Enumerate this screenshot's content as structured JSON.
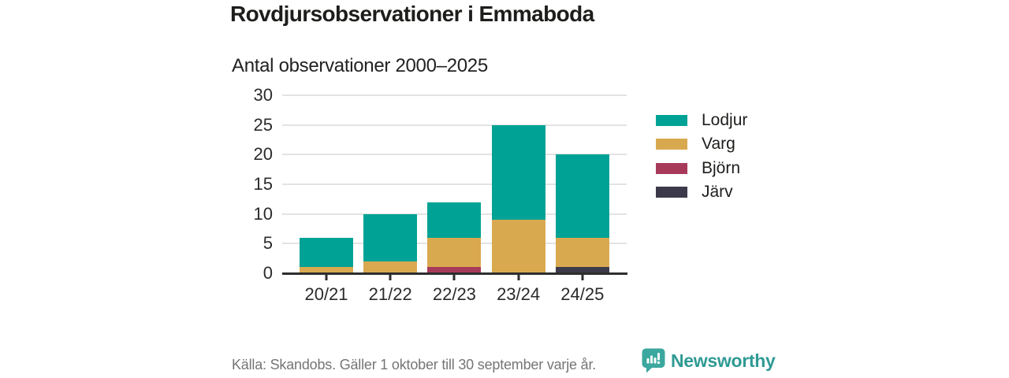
{
  "header": {
    "title": "Rovdjursobservationer i Emmaboda",
    "subtitle": "Antal observationer 2000–2025"
  },
  "chart_data": {
    "type": "bar",
    "stacked": true,
    "title": "Rovdjursobservationer i Emmaboda",
    "subtitle": "Antal observationer 2000–2025",
    "categories": [
      "20/21",
      "21/22",
      "22/23",
      "23/24",
      "24/25"
    ],
    "series": [
      {
        "name": "Lodjur",
        "color": "#00a296",
        "values": [
          5,
          8,
          6,
          16,
          14
        ]
      },
      {
        "name": "Varg",
        "color": "#d9a950",
        "values": [
          1,
          2,
          5,
          9,
          5
        ]
      },
      {
        "name": "Björn",
        "color": "#a73a5b",
        "values": [
          0,
          0,
          1,
          0,
          0
        ]
      },
      {
        "name": "Järv",
        "color": "#3c3a4a",
        "values": [
          0,
          0,
          0,
          0,
          1
        ]
      }
    ],
    "stack_order_bottom_to_top": [
      "Järv",
      "Björn",
      "Varg",
      "Lodjur"
    ],
    "totals": [
      6,
      10,
      12,
      25,
      20
    ],
    "xlabel": "",
    "ylabel": "",
    "ylim": [
      0,
      30
    ],
    "yticks": [
      0,
      5,
      10,
      15,
      20,
      25,
      30
    ],
    "grid": true,
    "legend_position": "right"
  },
  "footer": {
    "source": "Källa: Skandobs. Gäller 1 oktober till 30 september varje år.",
    "brand": "Newsworthy",
    "brand_color": "#2f9a94"
  },
  "colors": {
    "axis": "#2e2e2e",
    "gridline": "#e3e3e3",
    "title_text": "#1d1d1b",
    "muted_text": "#757575",
    "logo_teal": "#3ba79e"
  }
}
